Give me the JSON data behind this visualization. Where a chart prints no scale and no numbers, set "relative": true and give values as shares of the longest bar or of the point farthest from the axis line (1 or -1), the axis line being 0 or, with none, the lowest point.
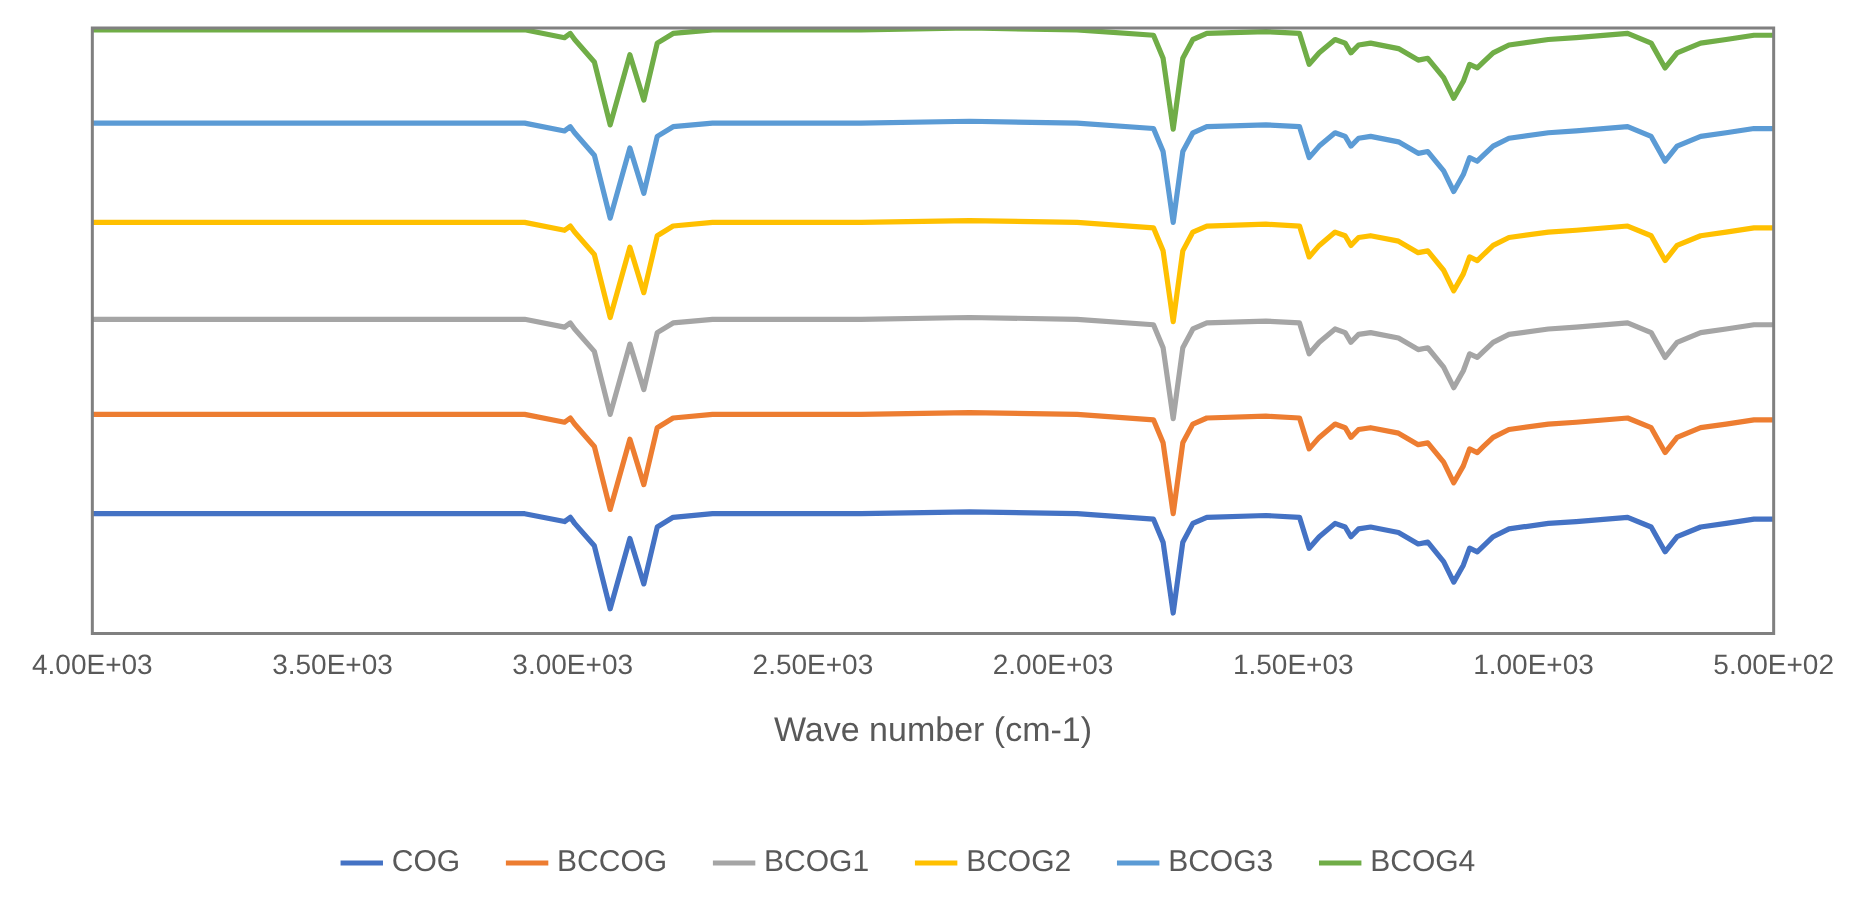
{
  "chart_data": {
    "type": "line",
    "relative": true,
    "xlabel": "Wave number (cm-1)",
    "legend": "bottom",
    "grid": false,
    "marker": "none",
    "line_style": "solid",
    "xlim": [
      4000,
      500
    ],
    "xticks": [
      {
        "value": 4000,
        "label": "4.00E+03"
      },
      {
        "value": 3500,
        "label": "3.50E+03"
      },
      {
        "value": 3000,
        "label": "3.00E+03"
      },
      {
        "value": 2500,
        "label": "2.50E+03"
      },
      {
        "value": 2000,
        "label": "2.00E+03"
      },
      {
        "value": 1500,
        "label": "1.50E+03"
      },
      {
        "value": 1000,
        "label": "1.00E+03"
      },
      {
        "value": 500,
        "label": "5.00E+02"
      }
    ],
    "x": [
      4000,
      3400,
      3100,
      3017,
      3005,
      2996,
      2955,
      2922,
      2881,
      2852,
      2824,
      2791,
      2709,
      2400,
      2174,
      1950,
      1791,
      1771,
      1750,
      1730,
      1709,
      1680,
      1557,
      1487,
      1467,
      1446,
      1413,
      1392,
      1380,
      1364,
      1339,
      1281,
      1240,
      1220,
      1187,
      1166,
      1146,
      1133,
      1117,
      1104,
      1084,
      1051,
      969,
      911,
      804,
      755,
      726,
      701,
      652,
      599,
      541,
      500
    ],
    "series": [
      {
        "name": "COG",
        "color": "#4472c4",
        "values": [
          0.198,
          0.198,
          0.198,
          0.185,
          0.192,
          0.182,
          0.145,
          0.041,
          0.157,
          0.082,
          0.176,
          0.192,
          0.198,
          0.198,
          0.201,
          0.198,
          0.189,
          0.151,
          0.034,
          0.151,
          0.182,
          0.192,
          0.195,
          0.192,
          0.141,
          0.16,
          0.182,
          0.176,
          0.16,
          0.173,
          0.176,
          0.167,
          0.148,
          0.151,
          0.119,
          0.085,
          0.113,
          0.141,
          0.135,
          0.145,
          0.16,
          0.173,
          0.182,
          0.185,
          0.192,
          0.176,
          0.135,
          0.16,
          0.176,
          0.182,
          0.189,
          0.189
        ]
      },
      {
        "name": "BCCOG",
        "color": "#ed7d31",
        "values": [
          0.362,
          0.362,
          0.362,
          0.349,
          0.356,
          0.346,
          0.309,
          0.205,
          0.321,
          0.246,
          0.34,
          0.356,
          0.362,
          0.362,
          0.365,
          0.362,
          0.353,
          0.315,
          0.198,
          0.315,
          0.346,
          0.356,
          0.359,
          0.356,
          0.305,
          0.324,
          0.346,
          0.34,
          0.324,
          0.337,
          0.34,
          0.331,
          0.312,
          0.315,
          0.283,
          0.249,
          0.277,
          0.305,
          0.299,
          0.309,
          0.324,
          0.337,
          0.346,
          0.349,
          0.356,
          0.34,
          0.299,
          0.324,
          0.34,
          0.346,
          0.353,
          0.353
        ]
      },
      {
        "name": "BCOG1",
        "color": "#a5a5a5",
        "values": [
          0.519,
          0.519,
          0.519,
          0.506,
          0.513,
          0.503,
          0.466,
          0.362,
          0.478,
          0.403,
          0.497,
          0.513,
          0.519,
          0.519,
          0.522,
          0.519,
          0.51,
          0.472,
          0.355,
          0.472,
          0.503,
          0.513,
          0.516,
          0.513,
          0.462,
          0.481,
          0.503,
          0.497,
          0.481,
          0.494,
          0.497,
          0.488,
          0.469,
          0.472,
          0.44,
          0.406,
          0.434,
          0.462,
          0.456,
          0.466,
          0.481,
          0.494,
          0.503,
          0.506,
          0.513,
          0.497,
          0.456,
          0.481,
          0.497,
          0.503,
          0.51,
          0.51
        ]
      },
      {
        "name": "BCOG2",
        "color": "#ffc000",
        "values": [
          0.679,
          0.679,
          0.679,
          0.666,
          0.673,
          0.663,
          0.626,
          0.522,
          0.638,
          0.563,
          0.657,
          0.673,
          0.679,
          0.679,
          0.682,
          0.679,
          0.67,
          0.632,
          0.515,
          0.632,
          0.663,
          0.673,
          0.676,
          0.673,
          0.622,
          0.641,
          0.663,
          0.657,
          0.641,
          0.654,
          0.657,
          0.648,
          0.629,
          0.632,
          0.6,
          0.566,
          0.594,
          0.622,
          0.616,
          0.626,
          0.641,
          0.654,
          0.663,
          0.666,
          0.673,
          0.657,
          0.616,
          0.641,
          0.657,
          0.663,
          0.67,
          0.67
        ]
      },
      {
        "name": "BCOG3",
        "color": "#5b9bd5",
        "values": [
          0.843,
          0.843,
          0.843,
          0.83,
          0.837,
          0.827,
          0.79,
          0.686,
          0.802,
          0.727,
          0.821,
          0.837,
          0.843,
          0.843,
          0.846,
          0.843,
          0.834,
          0.796,
          0.679,
          0.796,
          0.827,
          0.837,
          0.84,
          0.837,
          0.786,
          0.805,
          0.827,
          0.821,
          0.805,
          0.818,
          0.821,
          0.812,
          0.793,
          0.796,
          0.764,
          0.73,
          0.758,
          0.786,
          0.78,
          0.79,
          0.805,
          0.818,
          0.827,
          0.83,
          0.837,
          0.821,
          0.78,
          0.805,
          0.821,
          0.827,
          0.834,
          0.834
        ]
      },
      {
        "name": "BCOG4",
        "color": "#70ad47",
        "values": [
          0.997,
          0.997,
          0.997,
          0.984,
          0.991,
          0.981,
          0.944,
          0.84,
          0.956,
          0.881,
          0.975,
          0.991,
          0.997,
          0.997,
          1,
          0.997,
          0.988,
          0.95,
          0.833,
          0.95,
          0.981,
          0.991,
          0.994,
          0.991,
          0.94,
          0.959,
          0.981,
          0.975,
          0.959,
          0.972,
          0.975,
          0.966,
          0.947,
          0.95,
          0.918,
          0.884,
          0.912,
          0.94,
          0.934,
          0.944,
          0.959,
          0.972,
          0.981,
          0.984,
          0.991,
          0.975,
          0.934,
          0.959,
          0.975,
          0.981,
          0.988,
          0.988
        ]
      }
    ]
  }
}
